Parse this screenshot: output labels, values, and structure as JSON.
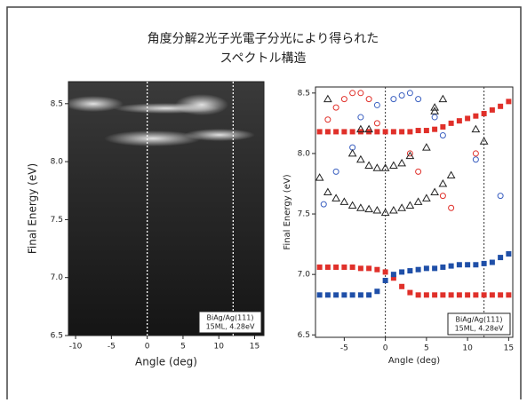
{
  "title": [
    "角度分解2光子光電子分光により得られた",
    "スペクトル構造"
  ],
  "chart_data": [
    {
      "type": "image",
      "xlabel": "Angle (deg)",
      "ylabel": "Final Energy (eV)",
      "xlim": [
        -11,
        16.3
      ],
      "ylim": [
        6.5,
        8.69
      ],
      "xticks": [
        -10,
        -5,
        0,
        5,
        10,
        15
      ],
      "yticks": [
        6.5,
        {
          "value": 7,
          "label": "7.0"
        },
        7.5,
        {
          "value": 8,
          "label": "8.0"
        },
        8.5
      ],
      "vlines": [
        0,
        12
      ],
      "annotation": [
        "BiAg/Ag(111)",
        "15ML, 4.28eV"
      ]
    },
    {
      "type": "scatter",
      "xlabel": "Angle (deg)",
      "ylabel": "Final Energy (eV)",
      "xlim": [
        -8.5,
        15.5
      ],
      "ylim": [
        6.48,
        8.55
      ],
      "xticks": [
        -5,
        0,
        5,
        10,
        15
      ],
      "yticks": [
        6.5,
        {
          "value": 7,
          "label": "7.0"
        },
        7.5,
        {
          "value": 8,
          "label": "8.0"
        },
        8.5
      ],
      "vlines": [
        0,
        12
      ],
      "annotation": [
        "BiAg/Ag(111)",
        "15ML, 4.28eV"
      ],
      "series": [
        {
          "marker": "square",
          "color": "#e0302a",
          "x": [
            -8,
            -7,
            -6,
            -5,
            -4,
            -3,
            -2,
            -1,
            0,
            1,
            2,
            3,
            4,
            5,
            6,
            7,
            8,
            9,
            10,
            11,
            12,
            13,
            14,
            15
          ],
          "values": [
            8.18,
            8.18,
            8.18,
            8.18,
            8.18,
            8.18,
            8.18,
            8.18,
            8.18,
            8.18,
            8.18,
            8.18,
            8.19,
            8.19,
            8.2,
            8.22,
            8.25,
            8.27,
            8.29,
            8.31,
            8.33,
            8.36,
            8.39,
            8.43
          ]
        },
        {
          "marker": "square",
          "color": "#e0302a",
          "x": [
            -8,
            -7,
            -6,
            -5,
            -4,
            -3,
            -2,
            -1,
            0,
            1,
            2,
            3,
            4,
            5,
            6,
            7,
            8,
            9,
            10,
            11,
            12,
            13,
            14,
            15
          ],
          "values": [
            7.06,
            7.06,
            7.06,
            7.06,
            7.06,
            7.05,
            7.05,
            7.04,
            7.02,
            6.97,
            6.9,
            6.85,
            6.83,
            6.83,
            6.83,
            6.83,
            6.83,
            6.83,
            6.83,
            6.83,
            6.83,
            6.83,
            6.83,
            6.83
          ]
        },
        {
          "marker": "square",
          "color": "#1f4fa8",
          "x": [
            -8,
            -7,
            -6,
            -5,
            -4,
            -3,
            -2,
            -1,
            0,
            1,
            2,
            3,
            4,
            5,
            6,
            7,
            8,
            9,
            10,
            11,
            12,
            13,
            14,
            15
          ],
          "values": [
            6.83,
            6.83,
            6.83,
            6.83,
            6.83,
            6.83,
            6.83,
            6.86,
            6.95,
            7.0,
            7.02,
            7.03,
            7.04,
            7.05,
            7.05,
            7.06,
            7.07,
            7.08,
            7.08,
            7.08,
            7.09,
            7.1,
            7.14,
            7.17
          ]
        },
        {
          "marker": "circle",
          "color": "#3a5fc0",
          "x": [
            -7.5,
            -6,
            -4,
            -3,
            -1,
            1,
            2,
            3,
            4,
            6,
            7,
            11,
            14
          ],
          "values": [
            7.58,
            7.85,
            8.05,
            8.3,
            8.4,
            8.45,
            8.48,
            8.5,
            8.45,
            8.3,
            8.15,
            7.95,
            7.65
          ]
        },
        {
          "marker": "circle",
          "color": "#e0302a",
          "x": [
            -7,
            -6,
            -5,
            -4,
            -3,
            -2,
            -1,
            3,
            4,
            7,
            8,
            11
          ],
          "values": [
            8.28,
            8.38,
            8.45,
            8.5,
            8.5,
            8.45,
            8.25,
            8.0,
            7.85,
            7.65,
            7.55,
            8.0
          ]
        },
        {
          "marker": "triangle",
          "color": "#222222",
          "x": [
            -8,
            -7,
            -6,
            -5,
            -4,
            -3,
            -2,
            -1,
            0,
            1,
            2,
            3,
            4,
            5,
            6,
            7,
            8,
            -4,
            -3,
            -2,
            -1,
            0,
            1,
            2,
            3,
            5,
            6,
            7,
            -7,
            -3,
            -2,
            6,
            12,
            11
          ],
          "values": [
            7.8,
            7.68,
            7.63,
            7.6,
            7.57,
            7.55,
            7.54,
            7.53,
            7.51,
            7.53,
            7.55,
            7.57,
            7.6,
            7.63,
            7.68,
            7.75,
            7.82,
            8.0,
            7.95,
            7.9,
            7.88,
            7.88,
            7.9,
            7.92,
            7.98,
            8.05,
            8.35,
            8.45,
            8.45,
            8.2,
            8.2,
            8.38,
            8.1,
            8.2
          ]
        }
      ]
    }
  ]
}
